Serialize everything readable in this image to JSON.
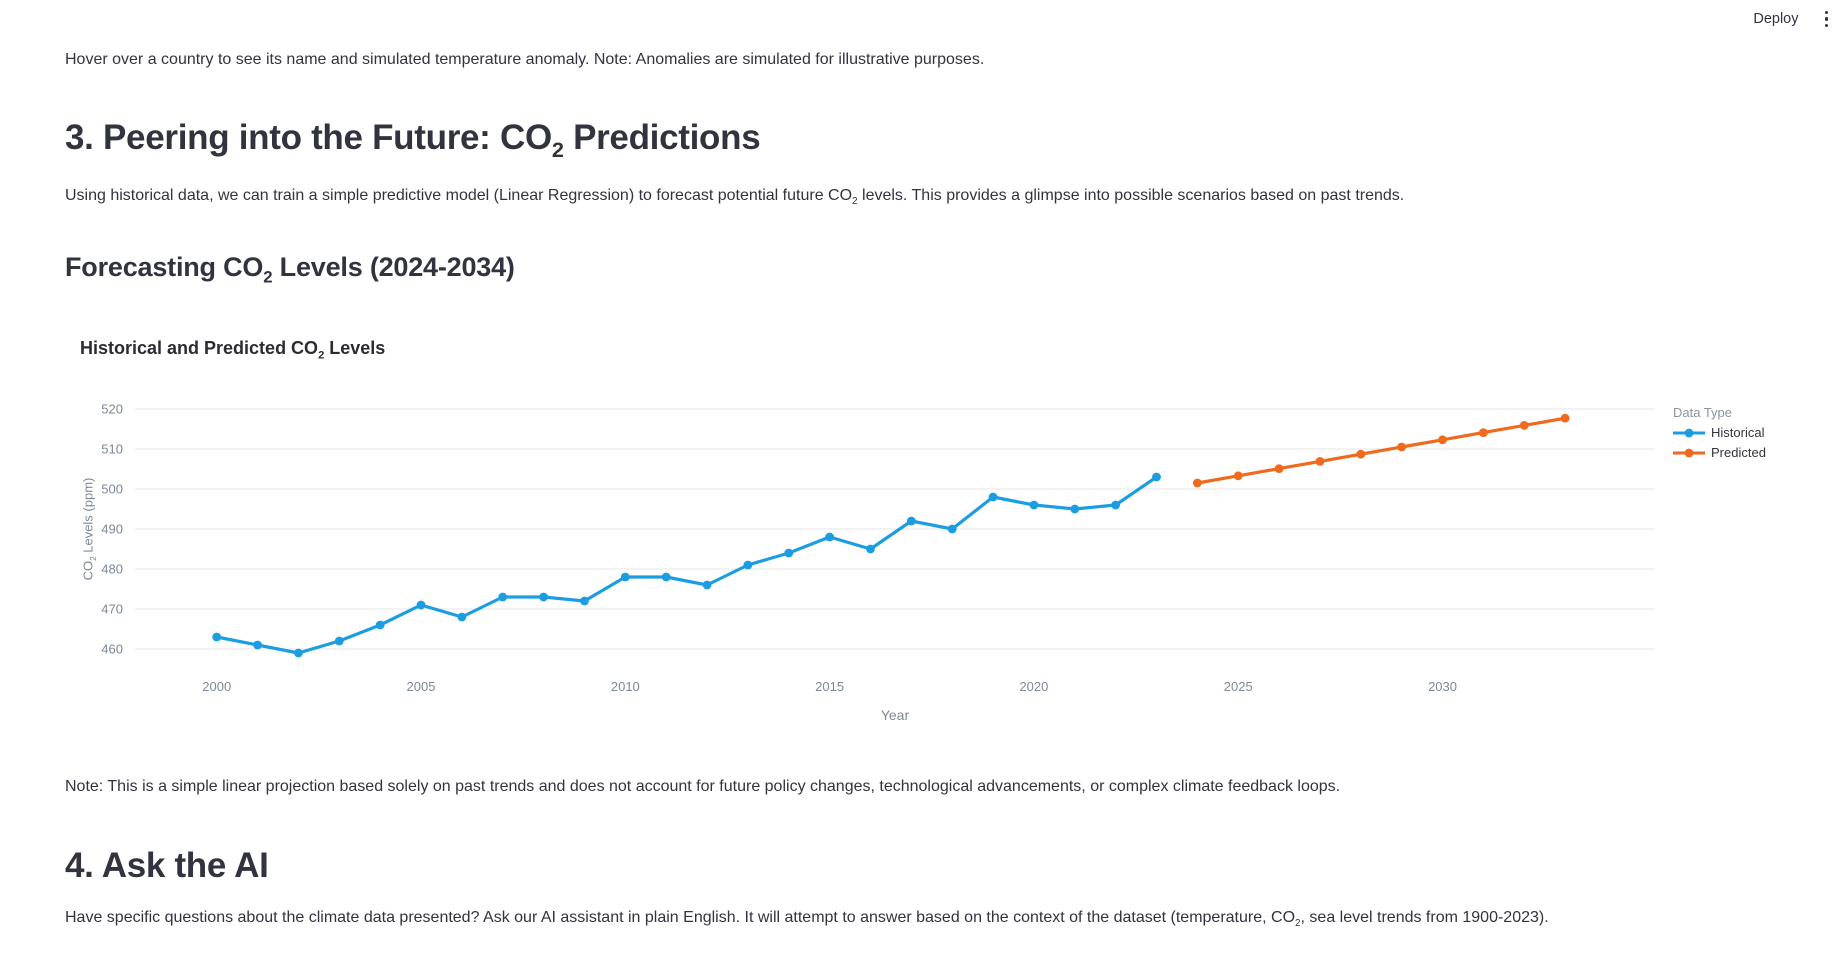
{
  "toolbar": {
    "deploy_label": "Deploy",
    "icons": {
      "overflow_menu": "kebab-menu-icon"
    }
  },
  "intro_caption": "Hover over a country to see its name and simulated temperature anomaly. Note: Anomalies are simulated for illustrative purposes.",
  "section3": {
    "heading": {
      "pre": "3. Peering into the Future: CO",
      "sub": "2",
      "post": " Predictions"
    },
    "body": {
      "pre": "Using historical data, we can train a simple predictive model (Linear Regression) to forecast potential future CO",
      "sub": "2",
      "post": " levels. This provides a glimpse into possible scenarios based on past trends."
    },
    "subheading": {
      "pre": "Forecasting CO",
      "sub": "2",
      "post": " Levels (2024-2034)"
    },
    "note": "Note: This is a simple linear projection based solely on past trends and does not account for future policy changes, technological advancements, or complex climate feedback loops."
  },
  "section4": {
    "heading": "4. Ask the AI",
    "body": {
      "pre": "Have specific questions about the climate data presented? Ask our AI assistant in plain English. It will attempt to answer based on the context of the dataset (temperature, CO",
      "sub": "2",
      "post": ", sea level trends from 1900-2023)."
    }
  },
  "chart_data": {
    "type": "line",
    "title": {
      "pre": "Historical and Predicted CO",
      "sub": "2",
      "post": " Levels"
    },
    "xlabel": "Year",
    "ylabel": {
      "pre": "CO",
      "sub": "2",
      "post": " Levels (ppm)"
    },
    "legend": {
      "title": "Data Type",
      "entries": [
        "Historical",
        "Predicted"
      ],
      "position": "right"
    },
    "x_ticks": [
      2000,
      2005,
      2010,
      2015,
      2020,
      2025,
      2030
    ],
    "y_ticks": [
      460,
      470,
      480,
      490,
      500,
      510,
      520
    ],
    "x_range": [
      1998.0,
      2035.2
    ],
    "y_range": [
      456,
      523.5
    ],
    "grid": true,
    "colors": {
      "historical": "#1C9DE2",
      "predicted": "#F0691C",
      "grid": "#e6e6e6",
      "axis_label": "#7d8898"
    },
    "series": [
      {
        "name": "Historical",
        "color_key": "historical",
        "x": [
          2000,
          2001,
          2002,
          2003,
          2004,
          2005,
          2006,
          2007,
          2008,
          2009,
          2010,
          2011,
          2012,
          2013,
          2014,
          2015,
          2016,
          2017,
          2018,
          2019,
          2020,
          2021,
          2022,
          2023
        ],
        "y": [
          463,
          461,
          459,
          462,
          466,
          471,
          468,
          473,
          473,
          472,
          478,
          478,
          476,
          481,
          484,
          488,
          485,
          492,
          490,
          498,
          496,
          495,
          496,
          503
        ]
      },
      {
        "name": "Predicted",
        "color_key": "predicted",
        "x": [
          2024,
          2025,
          2026,
          2027,
          2028,
          2029,
          2030,
          2031,
          2032,
          2033
        ],
        "y": [
          501.5,
          503.3,
          505.1,
          506.9,
          508.7,
          510.5,
          512.3,
          514.1,
          515.9,
          517.7
        ]
      }
    ]
  }
}
